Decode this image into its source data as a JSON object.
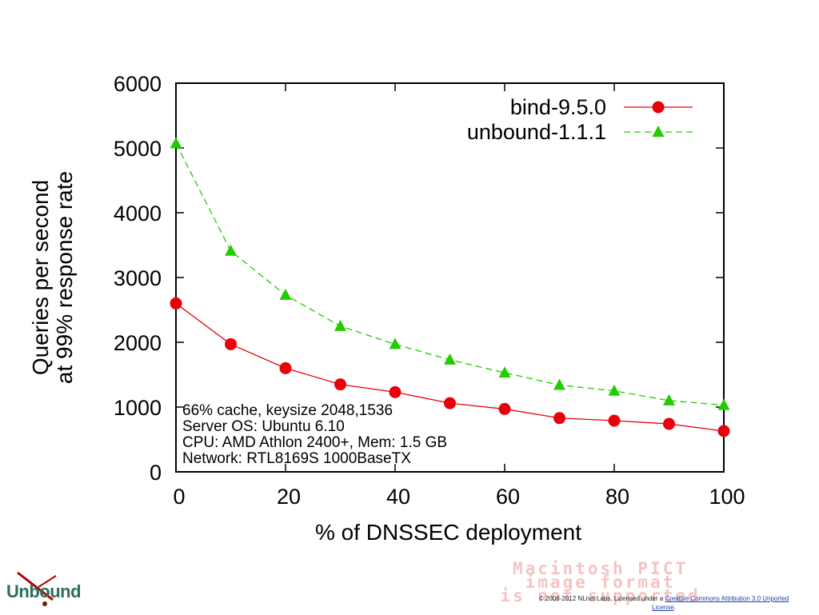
{
  "chart_data": {
    "type": "line",
    "title": "",
    "xlabel": "% of DNSSEC deployment",
    "ylabel_lines": [
      "Queries per second",
      "at 99% response rate"
    ],
    "xlim": [
      0,
      100
    ],
    "ylim": [
      0,
      6000
    ],
    "x_ticks": [
      0,
      20,
      40,
      60,
      80,
      100
    ],
    "y_ticks": [
      0,
      1000,
      2000,
      3000,
      4000,
      5000,
      6000
    ],
    "x": [
      0,
      10,
      20,
      30,
      40,
      50,
      60,
      70,
      80,
      90,
      100
    ],
    "series": [
      {
        "name": "bind-9.5.0",
        "color": "#e8000b",
        "marker": "circle",
        "dash": "solid",
        "values": [
          2600,
          1970,
          1600,
          1350,
          1230,
          1060,
          970,
          830,
          790,
          740,
          630
        ]
      },
      {
        "name": "unbound-1.1.1",
        "color": "#22cc00",
        "marker": "triangle",
        "dash": "dashed",
        "values": [
          5070,
          3410,
          2730,
          2250,
          1970,
          1730,
          1530,
          1340,
          1250,
          1100,
          1030
        ]
      }
    ],
    "legend_position": "top-right",
    "annotation_lines": [
      "66% cache, keysize 2048,1536",
      "Server OS: Ubuntu 6.10",
      "CPU: AMD Athlon 2400+, Mem: 1.5 GB",
      "Network: RTL8169S 1000BaseTX"
    ]
  },
  "logo": {
    "text": "Unbound",
    "color": "#2c6e5a"
  },
  "pict_notice": {
    "line1": "Macintosh PICT",
    "line2": "image format",
    "line3": "is not supported"
  },
  "footer": {
    "prefix": "© 2006-2012 NLnet Labs, Licensed under a",
    "link": "Creative Commons Attribution 3.0 Unported",
    "link2": "License",
    "suffix": "."
  }
}
